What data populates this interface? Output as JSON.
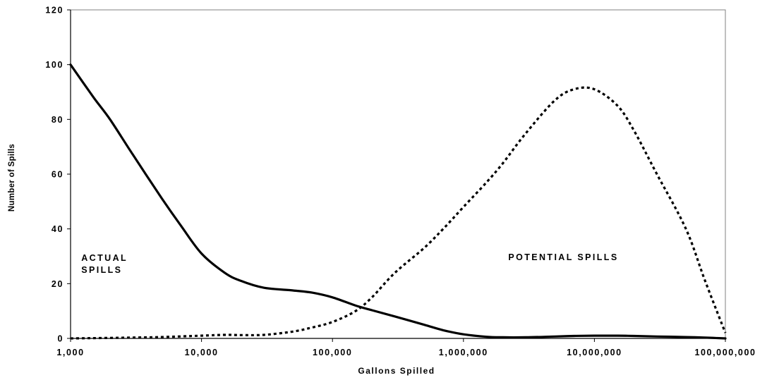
{
  "chart_data": {
    "type": "line",
    "xlabel": "Gallons Spilled",
    "ylabel": "Number of Spills",
    "xscale": "log",
    "xlim": [
      1000,
      100000000
    ],
    "ylim": [
      0,
      120
    ],
    "x_ticks": [
      1000,
      10000,
      100000,
      1000000,
      10000000,
      100000000
    ],
    "x_tick_labels": [
      "1,000",
      "10,000",
      "100,000",
      "1,000,000",
      "10,000,000",
      "100,000,000"
    ],
    "y_ticks": [
      0,
      20,
      40,
      60,
      80,
      100,
      120
    ],
    "y_tick_labels": [
      "0",
      "20",
      "40",
      "60",
      "80",
      "100",
      "120"
    ],
    "grid": false,
    "legend": "none",
    "series": [
      {
        "style": "solid",
        "x": [
          1000,
          1500,
          2000,
          3000,
          5000,
          7000,
          10000,
          15000,
          20000,
          30000,
          50000,
          70000,
          100000,
          150000,
          200000,
          300000,
          500000,
          700000,
          1000000,
          1500000,
          2000000,
          3000000,
          5000000,
          7000000,
          10000000,
          15000000,
          20000000,
          30000000,
          50000000,
          70000000,
          100000000
        ],
        "values": [
          100,
          88,
          80,
          67,
          51,
          41,
          31,
          24,
          21,
          18.5,
          17.5,
          16.7,
          15,
          12,
          10.3,
          8,
          5,
          3,
          1.5,
          0.6,
          0.4,
          0.4,
          0.7,
          0.9,
          1,
          1,
          0.9,
          0.7,
          0.5,
          0.3,
          0
        ]
      },
      {
        "style": "dotted",
        "x": [
          1000,
          3000,
          5000,
          10000,
          15000,
          20000,
          30000,
          50000,
          70000,
          100000,
          150000,
          200000,
          300000,
          500000,
          700000,
          1000000,
          1500000,
          2000000,
          3000000,
          5000000,
          7000000,
          10000000,
          15000000,
          20000000,
          30000000,
          50000000,
          70000000,
          100000000
        ],
        "values": [
          0,
          0.3,
          0.5,
          1,
          1.3,
          1.2,
          1.3,
          2.5,
          4,
          6,
          10,
          15,
          24,
          33,
          40,
          48,
          57,
          64,
          75,
          87,
          91,
          91,
          85,
          76,
          60,
          40,
          21,
          2
        ]
      }
    ],
    "annotations": [
      {
        "lines": [
          "ACTUAL",
          "SPILLS"
        ],
        "x": 1150,
        "y": 30
      },
      {
        "lines": [
          "POTENTIAL SPILLS"
        ],
        "x": 2200000,
        "y": 30
      }
    ]
  }
}
